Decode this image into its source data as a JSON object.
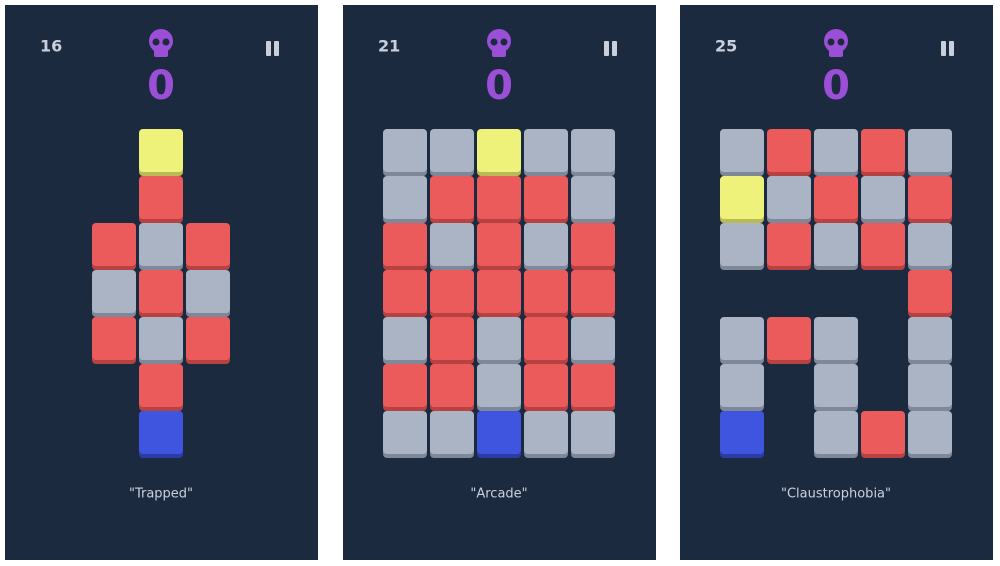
{
  "panels": [
    {
      "level": "16",
      "score": "0",
      "caption": "\"Trapped\""
    },
    {
      "level": "21",
      "score": "0",
      "caption": "\"Arcade\""
    },
    {
      "level": "25",
      "score": "0",
      "caption": "\"Claustrophobia\""
    }
  ]
}
